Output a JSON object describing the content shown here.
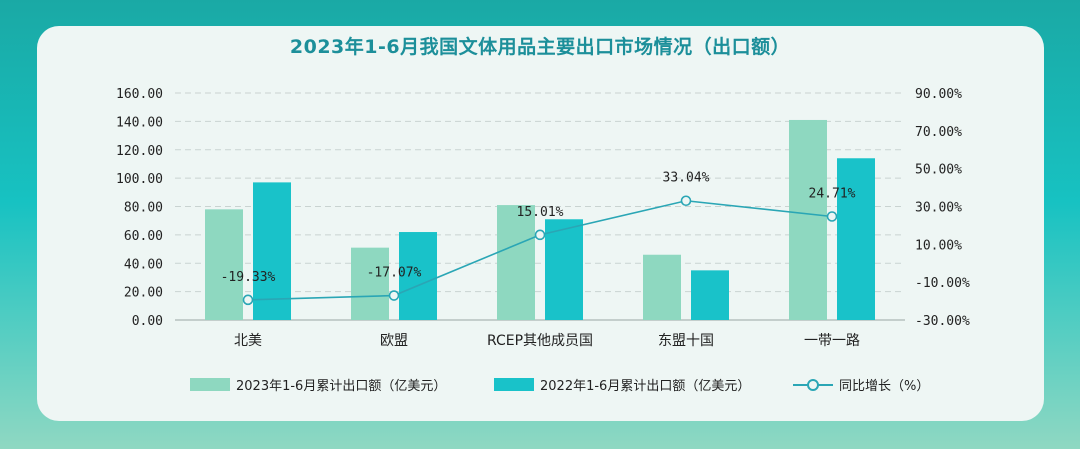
{
  "chart_data": {
    "type": "bar",
    "title": "2023年1-6月我国文体用品主要出口市场情况（出口额）",
    "categories": [
      "北美",
      "欧盟",
      "RCEP其他成员国",
      "东盟十国",
      "一带一路"
    ],
    "series": [
      {
        "name": "2023年1-6月累计出口额（亿美元）",
        "type": "bar",
        "axis": "left",
        "color": "#8ed8c0",
        "values": [
          78,
          51,
          81,
          46,
          141
        ]
      },
      {
        "name": "2022年1-6月累计出口额（亿美元）",
        "type": "bar",
        "axis": "left",
        "color": "#19c2c9",
        "values": [
          97,
          62,
          71,
          35,
          114
        ]
      },
      {
        "name": "同比增长（%）",
        "type": "line",
        "axis": "right",
        "color": "#2aa6b5",
        "values": [
          -19.33,
          -17.07,
          15.01,
          33.04,
          24.71
        ],
        "labels": [
          "-19.33%",
          "-17.07%",
          "15.01%",
          "33.04%",
          "24.71%"
        ]
      }
    ],
    "y_left": {
      "ylim": [
        0,
        160
      ],
      "ticks": [
        "0.00",
        "20.00",
        "40.00",
        "60.00",
        "80.00",
        "100.00",
        "120.00",
        "140.00",
        "160.00"
      ]
    },
    "y_right": {
      "ylim": [
        -30,
        90
      ],
      "ticks": [
        "-30.00%",
        "-10.00%",
        "10.00%",
        "30.00%",
        "50.00%",
        "70.00%",
        "90.00%"
      ]
    },
    "grid": true,
    "legend_position": "bottom"
  }
}
